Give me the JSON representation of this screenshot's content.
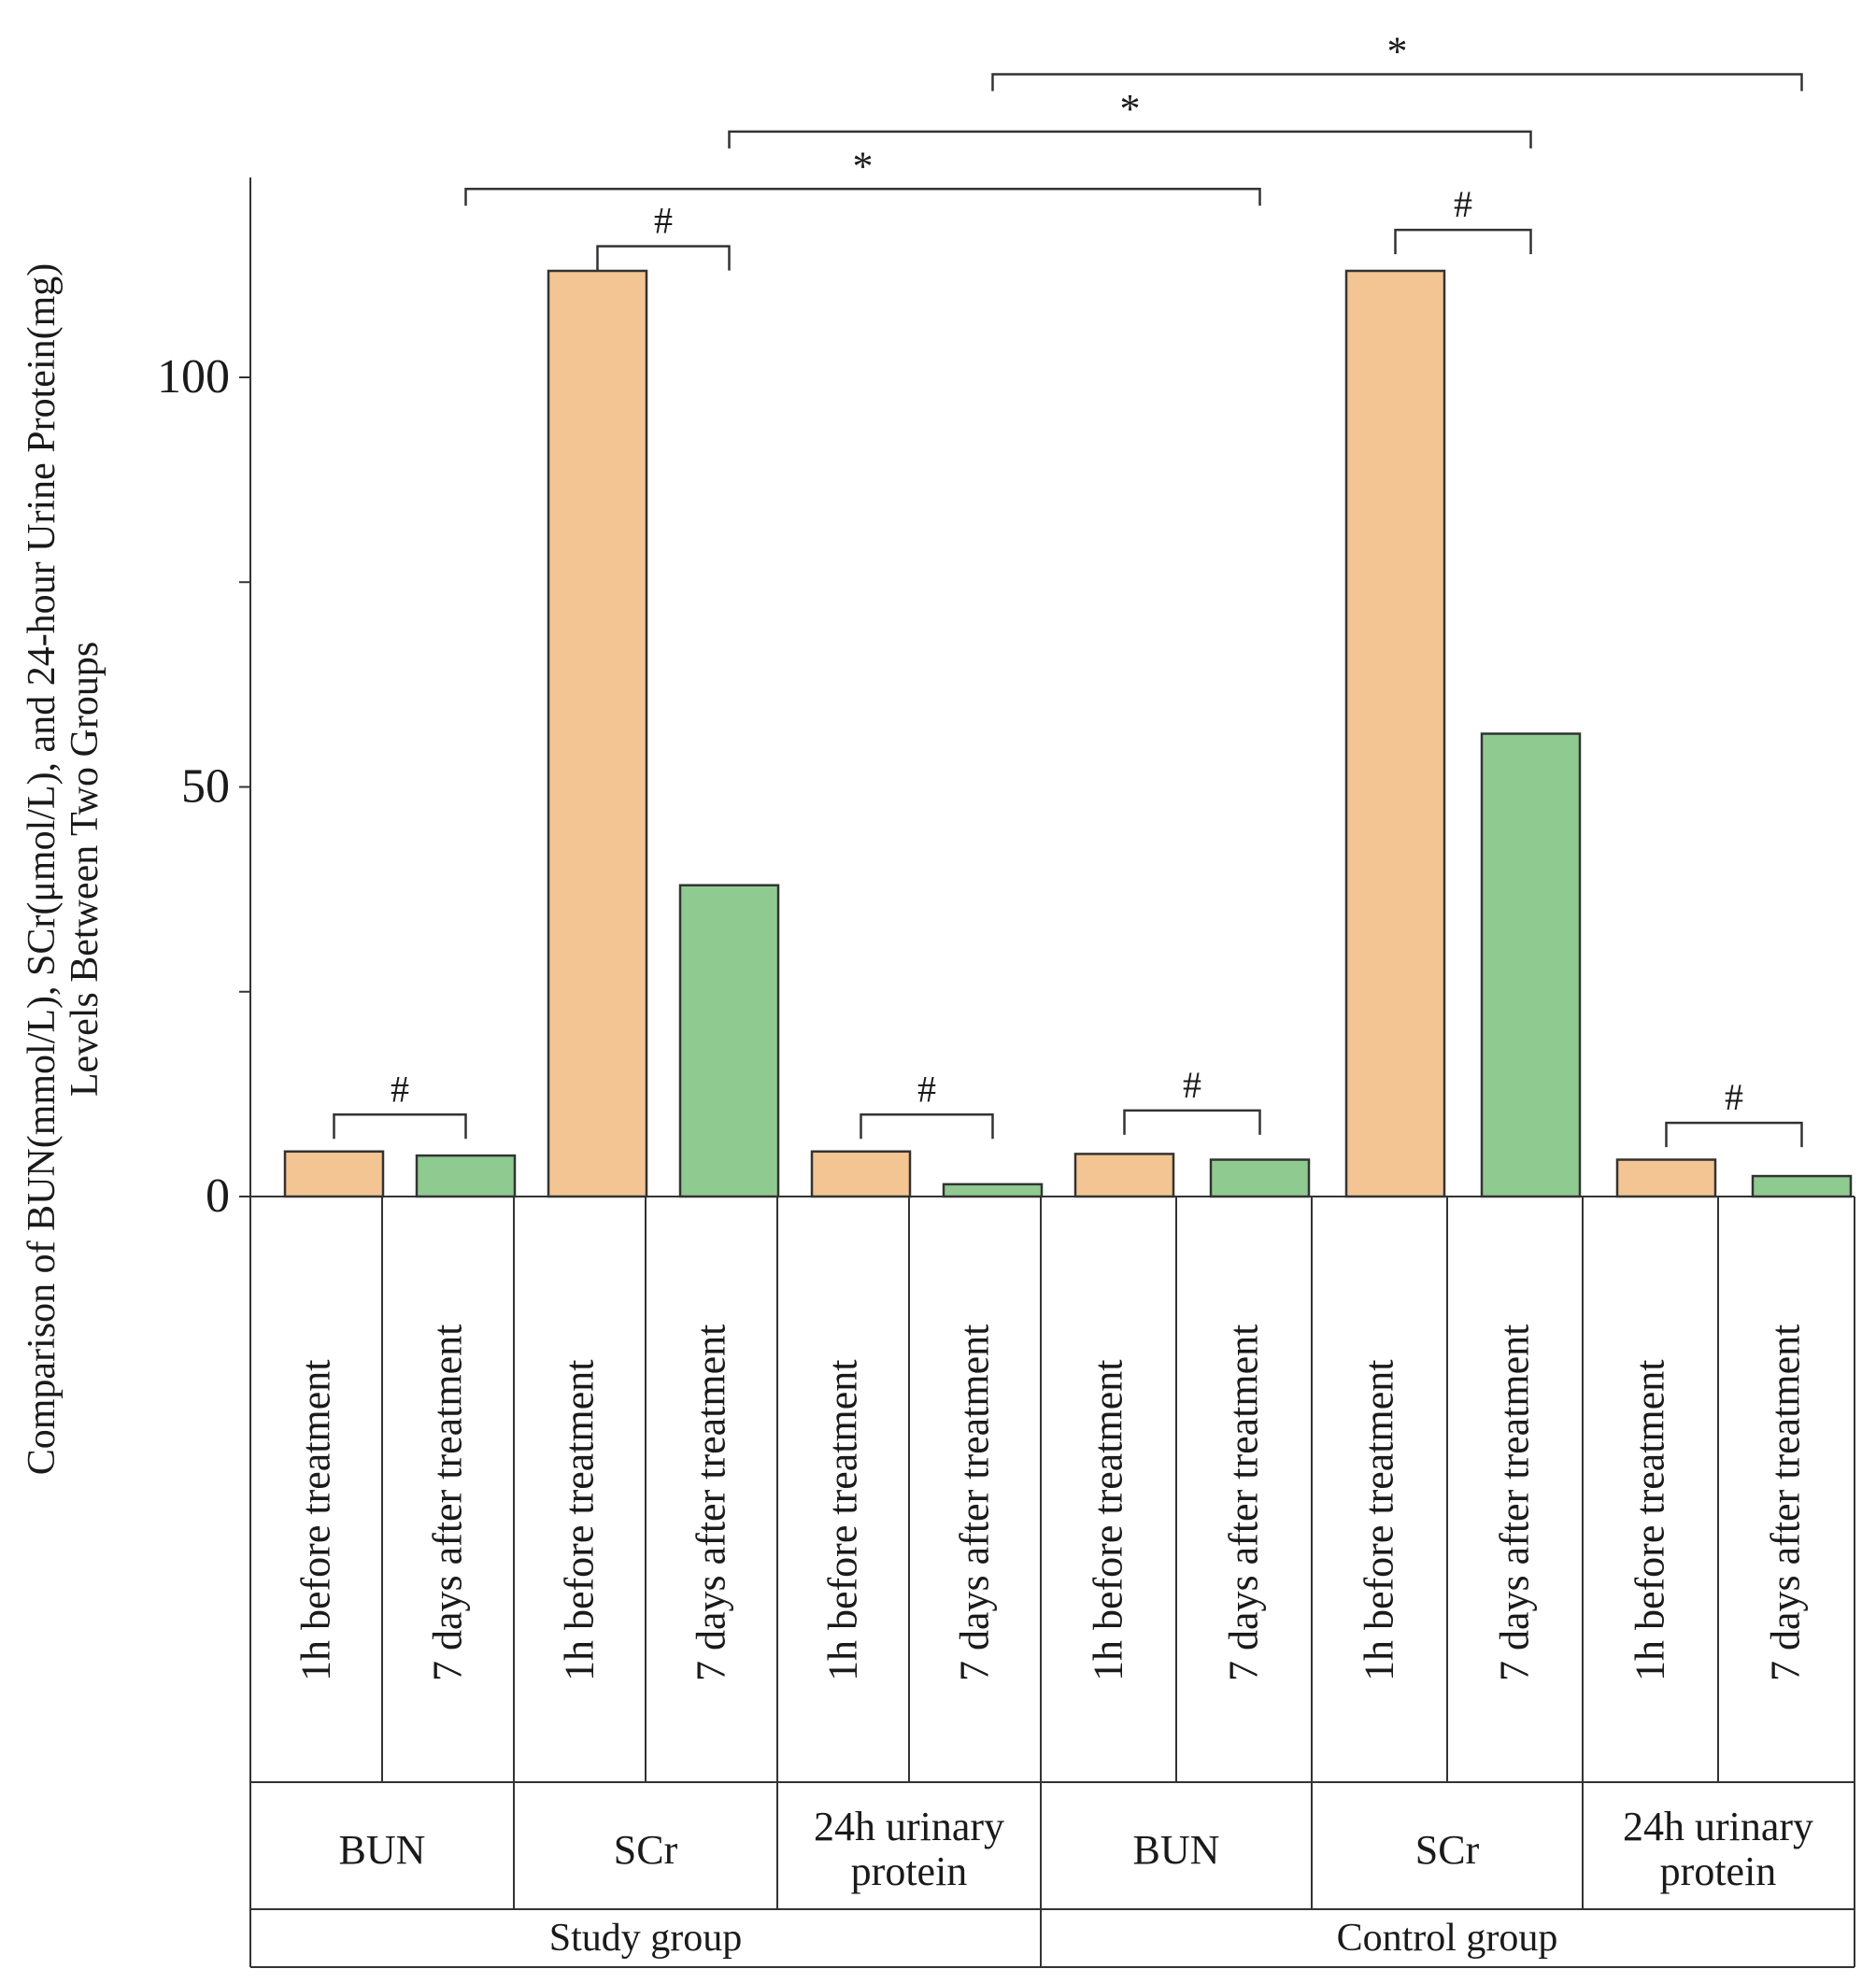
{
  "chart_data": {
    "type": "bar",
    "ylabel_lines": [
      "Comparison of BUN(mmol/L), SCr(μmol/L), and 24-hour Urine Protein(mg)",
      "Levels Between Two Groups"
    ],
    "ylim": [
      0,
      125
    ],
    "yticks": [
      {
        "value": 0,
        "label": "0"
      },
      {
        "value": 25,
        "label": ""
      },
      {
        "value": 50,
        "label": "50"
      },
      {
        "value": 75,
        "label": ""
      },
      {
        "value": 100,
        "label": "100"
      }
    ],
    "series_colors": {
      "before": "#f2c592",
      "after": "#8fca90"
    },
    "groups": [
      {
        "name": "Study group",
        "metrics": [
          {
            "name": "BUN",
            "bars": [
              {
                "label": "1h before treatment",
                "value": 5.5,
                "series": "before"
              },
              {
                "label": "7 days after treatment",
                "value": 5.0,
                "series": "after"
              }
            ]
          },
          {
            "name": "SCr",
            "bars": [
              {
                "label": "1h before treatment",
                "value": 113,
                "series": "before"
              },
              {
                "label": "7 days after treatment",
                "value": 38,
                "series": "after"
              }
            ]
          },
          {
            "name": "24h urinary protein",
            "bars": [
              {
                "label": "1h before treatment",
                "value": 5.5,
                "series": "before"
              },
              {
                "label": "7 days after treatment",
                "value": 1.5,
                "series": "after"
              }
            ]
          }
        ]
      },
      {
        "name": "Control group",
        "metrics": [
          {
            "name": "BUN",
            "bars": [
              {
                "label": "1h before treatment",
                "value": 5.2,
                "series": "before"
              },
              {
                "label": "7 days after treatment",
                "value": 4.5,
                "series": "after"
              }
            ]
          },
          {
            "name": "SCr",
            "bars": [
              {
                "label": "1h before treatment",
                "value": 113,
                "series": "before"
              },
              {
                "label": "7 days after treatment",
                "value": 56.5,
                "series": "after"
              }
            ]
          },
          {
            "name": "24h urinary protein",
            "bars": [
              {
                "label": "1h before treatment",
                "value": 4.5,
                "series": "before"
              },
              {
                "label": "7 days after treatment",
                "value": 2.5,
                "series": "after"
              }
            ]
          }
        ]
      }
    ],
    "annotations": [
      {
        "symbol": "#",
        "from_bar": 0,
        "to_bar": 1,
        "level": 10
      },
      {
        "symbol": "#",
        "from_bar": 2,
        "to_bar": 3,
        "level": 116
      },
      {
        "symbol": "#",
        "from_bar": 4,
        "to_bar": 5,
        "level": 10
      },
      {
        "symbol": "#",
        "from_bar": 6,
        "to_bar": 7,
        "level": 10.5
      },
      {
        "symbol": "#",
        "from_bar": 8,
        "to_bar": 9,
        "level": 118
      },
      {
        "symbol": "#",
        "from_bar": 10,
        "to_bar": 11,
        "level": 9
      },
      {
        "symbol": "*",
        "from_bar": 1,
        "to_bar": 7,
        "level": 123
      },
      {
        "symbol": "*",
        "from_bar": 3,
        "to_bar": 9,
        "level": 130
      },
      {
        "symbol": "*",
        "from_bar": 5,
        "to_bar": 11,
        "level": 137
      }
    ]
  }
}
